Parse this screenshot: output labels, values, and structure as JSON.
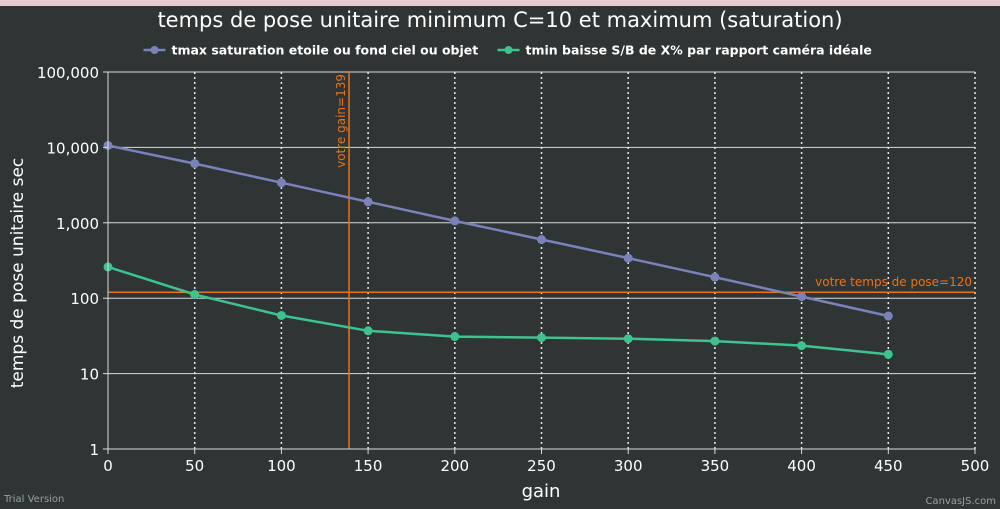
{
  "chart_data": {
    "type": "line",
    "title": "temps de pose unitaire minimum C=10 et maximum (saturation)",
    "xlabel": "gain",
    "ylabel": "temps de pose unitaire sec",
    "x_ticks": [
      "0",
      "50",
      "100",
      "150",
      "200",
      "250",
      "300",
      "350",
      "400",
      "450",
      "500"
    ],
    "y_ticks": [
      "1",
      "10",
      "100",
      "1,000",
      "10,000",
      "100,000"
    ],
    "xlim": [
      0,
      500
    ],
    "ylim": [
      1,
      100000
    ],
    "y_scale": "log",
    "grid": true,
    "legend_position": "top",
    "series": [
      {
        "name": "tmax saturation etoile ou fond ciel ou objet",
        "color": "#7b82b9",
        "x": [
          0,
          50,
          100,
          150,
          200,
          250,
          300,
          350,
          400,
          450
        ],
        "y": [
          10600,
          6100,
          3400,
          1900,
          1060,
          600,
          340,
          190,
          105,
          58
        ]
      },
      {
        "name": "tmin baisse S/B de X% par rapport caméra idéale",
        "color": "#3ec28f",
        "x": [
          0,
          50,
          100,
          150,
          200,
          250,
          300,
          350,
          400,
          450
        ],
        "y": [
          260,
          112,
          59,
          37,
          31,
          30,
          29,
          27,
          23.5,
          18
        ]
      }
    ],
    "annotations": [
      {
        "type": "vertical-line",
        "x": 139,
        "label": "votre gain=139",
        "color": "#e8731a"
      },
      {
        "type": "horizontal-line",
        "y": 120,
        "label": "votre temps de pose=120",
        "color": "#e8731a"
      }
    ]
  },
  "watermark": {
    "left": "Trial Version",
    "right": "CanvasJS.com"
  }
}
